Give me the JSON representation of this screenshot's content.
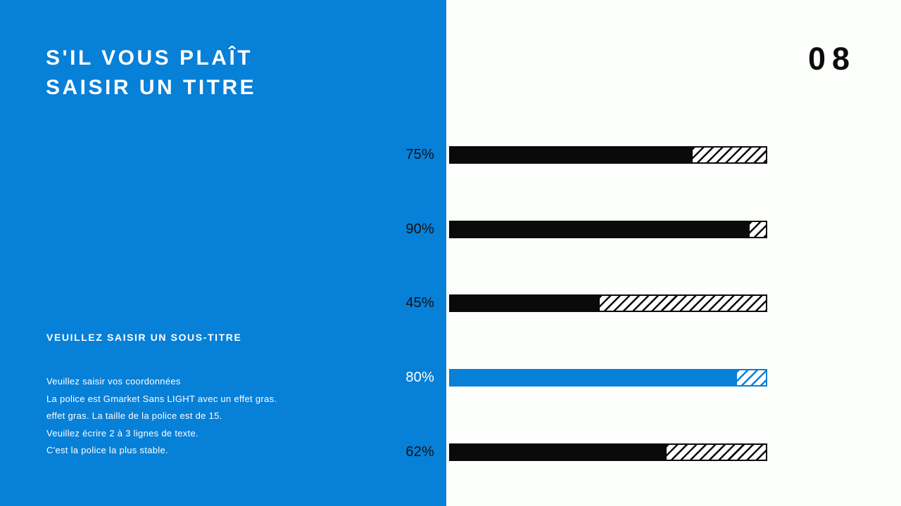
{
  "page": {
    "number": "08",
    "background_color": "#fdfffc"
  },
  "sidebar": {
    "background_color": "#0780d8",
    "text_color": "#ffffff",
    "title_line1": "S'IL VOUS PLAÎT",
    "title_line2": "SAISIR UN TITRE",
    "subtitle": "VEUILLEZ SAISIR UN SOUS-TITRE",
    "body_lines": [
      "Veuillez saisir vos coordonnées",
      "La police est Gmarket Sans LIGHT avec un effet gras.",
      "effet gras. La taille de la police est de 15.",
      "Veuillez écrire 2 à 3 lignes de texte.",
      "C'est la police la plus stable."
    ]
  },
  "chart_data": {
    "type": "bar",
    "orientation": "horizontal",
    "labels": [
      "75%",
      "90%",
      "45%",
      "80%",
      "62%"
    ],
    "values": [
      75,
      90,
      45,
      80,
      62
    ],
    "rendered_fill_pct": [
      76,
      94,
      47,
      90,
      68
    ],
    "highlight_index": 3,
    "bar_color": "#0a0a0a",
    "highlight_color": "#0780d8",
    "label_color": "#111111",
    "highlight_label_color": "#ffffff",
    "remainder_style": "diagonal-hatch",
    "xlim": [
      0,
      100
    ],
    "grid": false,
    "legend": false
  }
}
